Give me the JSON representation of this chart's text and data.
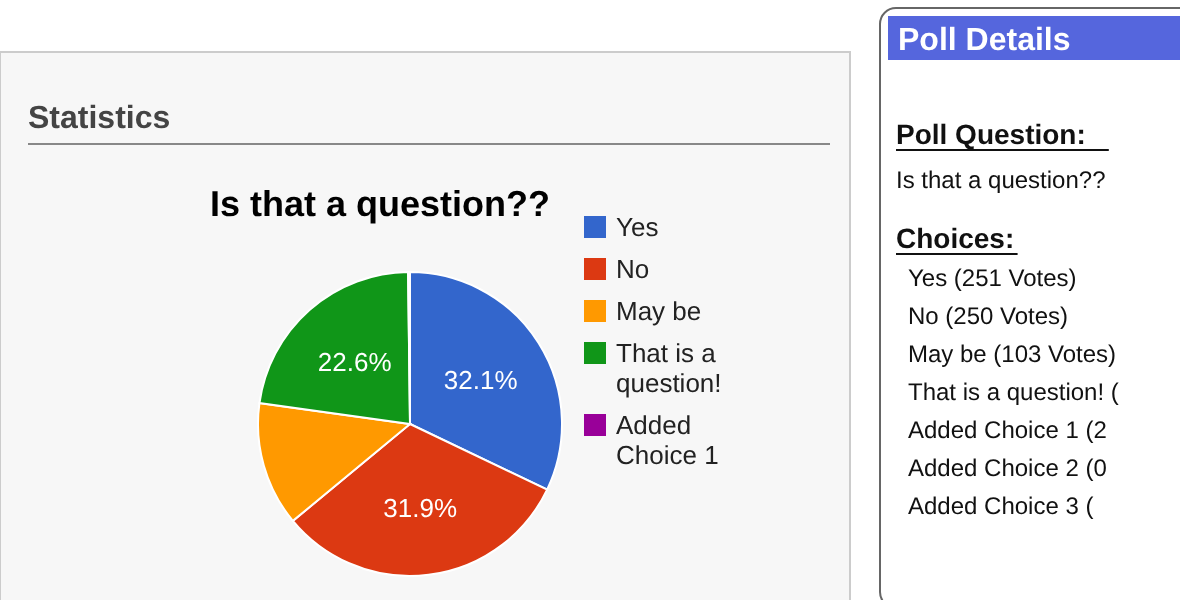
{
  "chart_data": [
    {
      "type": "pie",
      "title": "Is that a question??",
      "annotations": [
        "Statistics"
      ],
      "categories": [
        "Yes",
        "No",
        "May be",
        "That is a question!",
        "Added Choice 1"
      ],
      "values": [
        32.1,
        31.9,
        13.2,
        22.6,
        0.2
      ],
      "colors": [
        "#3366cc",
        "#dc3912",
        "#ff9900",
        "#109618",
        "#990099"
      ],
      "value_labels": [
        "32.1%",
        "31.9%",
        null,
        "22.6%",
        null
      ],
      "legend": "right"
    },
    {
      "type": "other",
      "title": "Poll Details",
      "annotations": [
        "Poll Question:",
        "Is that a question??",
        "Choices:",
        "Yes (251 Votes)",
        "No (250 Votes)",
        "May be (103 Votes)",
        "That is a question! (",
        "Added Choice 1 (2",
        "Added Choice 2 (0",
        "Added Choice 3 ("
      ]
    }
  ]
}
